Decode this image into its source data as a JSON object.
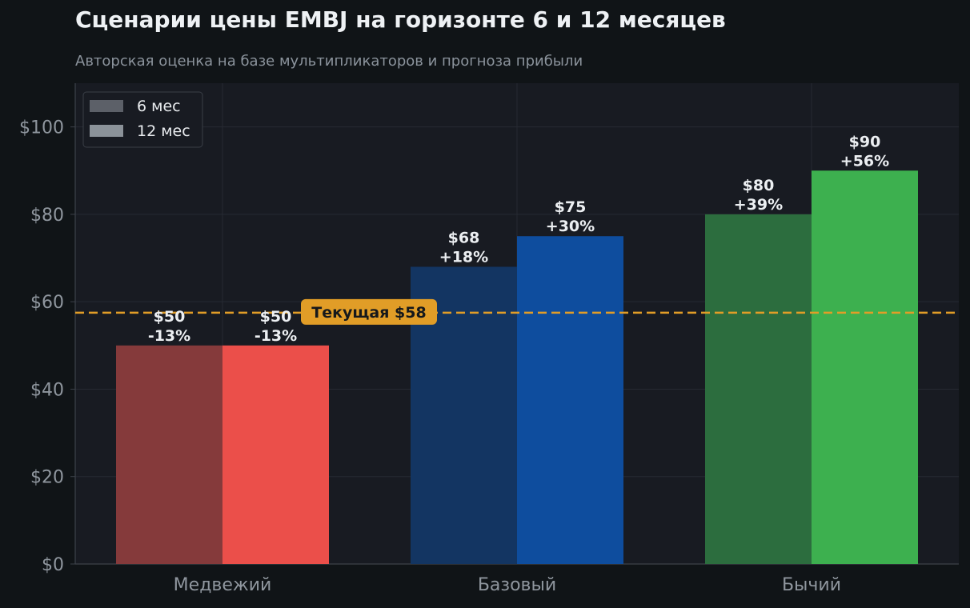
{
  "title": "Сценарии цены EMBJ на горизонте 6 и 12 месяцев",
  "subtitle": "Авторская оценка на базе мультипликаторов и прогноза прибыли",
  "chart_data": {
    "type": "bar",
    "title": "Сценарии цены EMBJ на горизонте 6 и 12 месяцев",
    "subtitle": "Авторская оценка на базе мультипликаторов и прогноза прибыли",
    "categories": [
      "Медвежий",
      "Базовый",
      "Бычий"
    ],
    "series": [
      {
        "name": "6 мес",
        "values": [
          50,
          68,
          80
        ],
        "labels": [
          "-13%",
          "+18%",
          "+39%"
        ],
        "colors": [
          "#853a3b",
          "#133562",
          "#2c6d3e"
        ]
      },
      {
        "name": "12 мес",
        "values": [
          50,
          75,
          90
        ],
        "labels": [
          "-13%",
          "+30%",
          "+56%"
        ],
        "colors": [
          "#eb4f4a",
          "#0e4d9e",
          "#3db04f"
        ]
      }
    ],
    "legend_colors": [
      "#5c6068",
      "#8b9299"
    ],
    "value_prefix": "$",
    "ylim": [
      0,
      110
    ],
    "yticks": [
      0,
      20,
      40,
      60,
      80,
      100
    ],
    "ytick_labels": [
      "$0",
      "$20",
      "$40",
      "$60",
      "$80",
      "$100"
    ],
    "xlabel": "",
    "ylabel": "",
    "grid": true,
    "legend_position": "top-left",
    "reference_line": {
      "value": 57.5,
      "label": "Текущая $58",
      "color": "#e19d27"
    }
  }
}
